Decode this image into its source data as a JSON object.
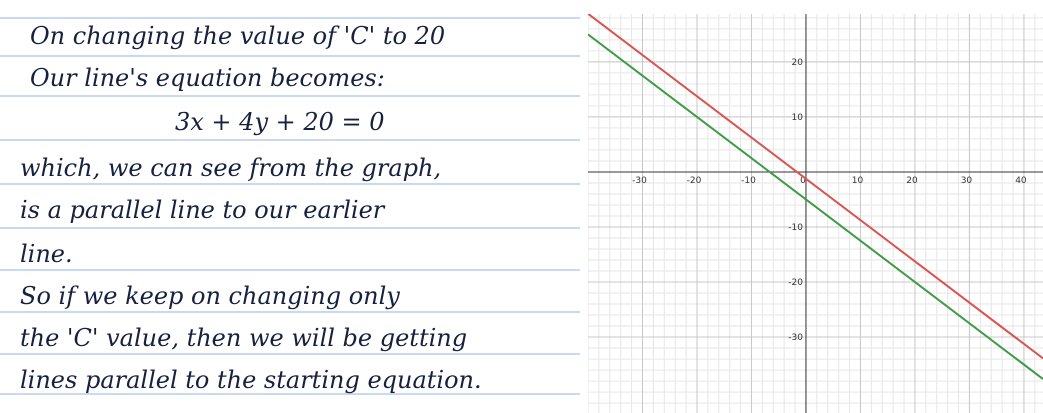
{
  "notes": {
    "lines": [
      "On changing the value of 'C' to 20",
      "Our line's equation becomes:",
      "3x + 4y + 20 = 0",
      "which, we can see from the graph,",
      "is a parallel line to our earlier",
      "line.",
      "So if we keep on changing only",
      "the 'C' value, then we will be getting",
      "lines parallel to the starting equation."
    ]
  },
  "chart_data": {
    "type": "line",
    "xlim": [
      -40,
      43.5
    ],
    "ylim": [
      -43.8,
      28.7
    ],
    "xticks": [
      -30,
      -20,
      -10,
      0,
      10,
      20,
      30,
      40
    ],
    "yticks": [
      -30,
      -20,
      -10,
      10,
      20
    ],
    "grid": true,
    "minor_step": 2,
    "series": [
      {
        "color": "#d9534f",
        "a": 3,
        "b": 4,
        "c": 5
      },
      {
        "color": "#3f9a45",
        "a": 3,
        "b": 4,
        "c": 20
      }
    ]
  }
}
